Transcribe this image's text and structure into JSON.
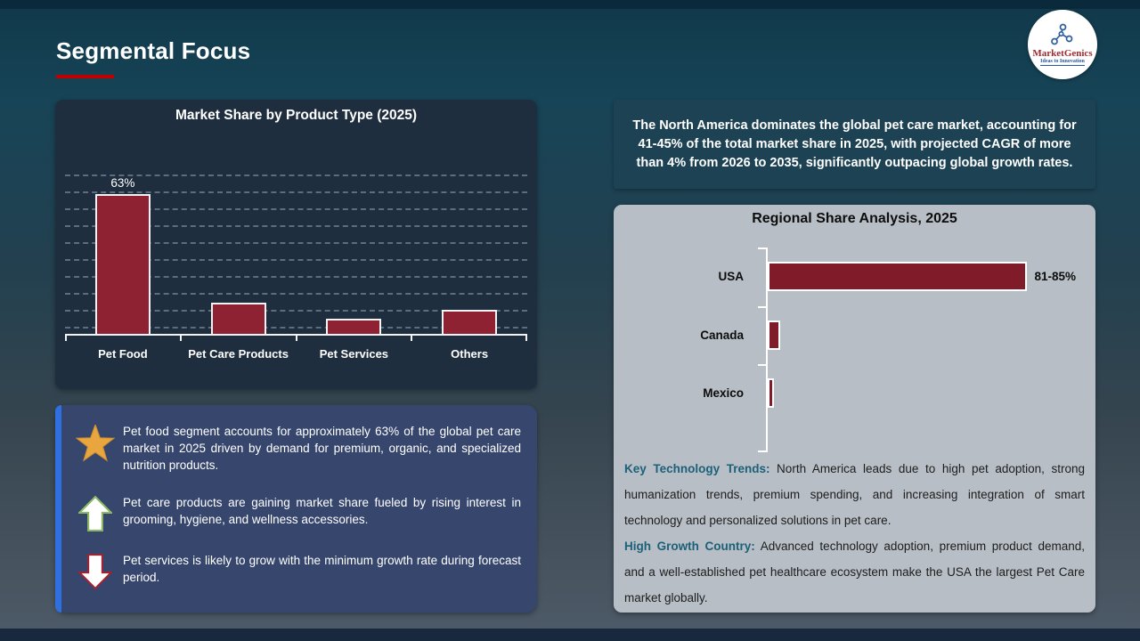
{
  "slide": {
    "title": "Segmental Focus"
  },
  "logo": {
    "brand": "MarketGenics",
    "tagline": "Ideas to Innovation"
  },
  "headline": "The North America dominates the global pet care market, accounting for 41-45% of the total market share in 2025, with projected CAGR of more than 4% from 2026 to 2035, significantly outpacing global growth rates.",
  "chart_data": [
    {
      "type": "bar",
      "title": "Market Share by Product Type (2025)",
      "categories": [
        "Pet Food",
        "Pet Care Products",
        "Pet Services",
        "Others"
      ],
      "values": [
        63,
        14,
        7,
        11
      ],
      "data_labels": [
        "63%",
        "",
        "",
        ""
      ],
      "unit": "%",
      "bar_color": "#8e2132",
      "ylim": [
        0,
        75
      ],
      "grid": "dashed-horizontal",
      "legend": "none"
    },
    {
      "type": "bar",
      "orientation": "horizontal",
      "title": "Regional Share Analysis, 2025",
      "categories": [
        "USA",
        "Canada",
        "Mexico"
      ],
      "values": [
        83,
        4,
        2
      ],
      "data_labels": [
        "81-85%",
        "",
        ""
      ],
      "unit": "%",
      "bar_color": "#801c29",
      "xlim": [
        0,
        100
      ],
      "grid": "off",
      "legend": "none"
    }
  ],
  "insights": [
    {
      "icon": "star",
      "text": "Pet food segment accounts for approximately 63% of the global pet care market in 2025 driven by demand for premium, organic, and specialized nutrition products."
    },
    {
      "icon": "arrow-up",
      "text": "Pet care products are gaining market share fueled by rising interest in grooming, hygiene, and wellness accessories."
    },
    {
      "icon": "arrow-down",
      "text": "Pet services is likely to grow with the minimum growth rate during forecast period."
    }
  ],
  "regional_notes": [
    {
      "label": "Key Technology Trends:",
      "text": " North America leads due to high pet adoption, strong humanization trends, premium spending, and increasing integration of smart technology and personalized solutions in pet care."
    },
    {
      "label": "High Growth Country:",
      "text": " Advanced technology adoption, premium product demand, and a well-established pet healthcare ecosystem make the USA the largest Pet Care market globally."
    }
  ],
  "colors": {
    "accent_red": "#c00000",
    "bar_red_left": "#8e2132",
    "bar_red_right": "#801c29",
    "insight_box_blue": "#36466d",
    "accent_stripe_blue": "#2f6fdf",
    "headline_box_teal": "#1d4254",
    "regional_panel_gray": "#b8bec5",
    "note_heading_teal": "#1c6179",
    "star_gold": "#e9a63e"
  }
}
